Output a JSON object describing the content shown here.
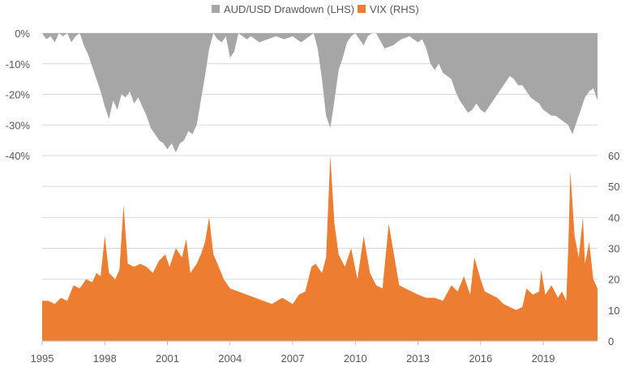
{
  "chart_data": {
    "type": "area",
    "legend": {
      "placement": "top-center",
      "items": [
        {
          "label": "AUD/USD Drawdown (LHS)",
          "color": "#a6a6a6"
        },
        {
          "label": "VIX (RHS)",
          "color": "#ed7d31"
        }
      ]
    },
    "left_axis": {
      "ticks": [
        "0%",
        "-10%",
        "-20%",
        "-30%",
        "-40%"
      ],
      "values": [
        0,
        -10,
        -20,
        -30,
        -40
      ],
      "range": [
        -40,
        0
      ]
    },
    "right_axis": {
      "ticks": [
        "0",
        "10",
        "20",
        "30",
        "40",
        "50",
        "60"
      ],
      "values": [
        0,
        10,
        20,
        30,
        40,
        50,
        60
      ],
      "range": [
        0,
        60
      ]
    },
    "x_axis": {
      "ticks": [
        "1995",
        "1998",
        "2001",
        "2004",
        "2007",
        "2010",
        "2013",
        "2016",
        "2019"
      ],
      "values": [
        1995,
        1998,
        2001,
        2004,
        2007,
        2010,
        2013,
        2016,
        2019
      ],
      "range": [
        1995,
        2021.6
      ]
    },
    "grid": true,
    "series": [
      {
        "name": "AUD/USD Drawdown (LHS)",
        "axis": "left",
        "color": "#a6a6a6",
        "x": [
          1995.0,
          1995.2,
          1995.4,
          1995.6,
          1995.8,
          1996.0,
          1996.2,
          1996.4,
          1996.6,
          1996.8,
          1997.0,
          1997.2,
          1997.4,
          1997.6,
          1997.8,
          1998.0,
          1998.2,
          1998.4,
          1998.6,
          1998.8,
          1999.0,
          1999.2,
          1999.4,
          1999.6,
          1999.8,
          2000.0,
          2000.2,
          2000.4,
          2000.6,
          2000.8,
          2001.0,
          2001.2,
          2001.4,
          2001.6,
          2001.8,
          2002.0,
          2002.2,
          2002.4,
          2002.6,
          2002.8,
          2003.0,
          2003.2,
          2003.4,
          2003.6,
          2003.8,
          2004.0,
          2004.2,
          2004.4,
          2004.6,
          2004.8,
          2005.0,
          2005.4,
          2005.8,
          2006.2,
          2006.6,
          2007.0,
          2007.4,
          2007.8,
          2008.0,
          2008.2,
          2008.4,
          2008.6,
          2008.8,
          2009.0,
          2009.2,
          2009.4,
          2009.6,
          2009.8,
          2010.0,
          2010.2,
          2010.4,
          2010.6,
          2010.8,
          2011.0,
          2011.4,
          2011.8,
          2012.2,
          2012.6,
          2013.0,
          2013.2,
          2013.4,
          2013.6,
          2013.8,
          2014.0,
          2014.2,
          2014.4,
          2014.6,
          2014.8,
          2015.0,
          2015.2,
          2015.4,
          2015.6,
          2015.8,
          2016.0,
          2016.2,
          2016.4,
          2016.6,
          2016.8,
          2017.0,
          2017.2,
          2017.4,
          2017.6,
          2017.8,
          2018.0,
          2018.2,
          2018.4,
          2018.6,
          2018.8,
          2019.0,
          2019.2,
          2019.4,
          2019.6,
          2019.8,
          2020.0,
          2020.2,
          2020.4,
          2020.6,
          2020.8,
          2021.0,
          2021.2,
          2021.4,
          2021.6
        ],
        "values": [
          0,
          -2,
          -1,
          -3,
          0,
          -1,
          0,
          -3,
          -1,
          0,
          -4,
          -7,
          -11,
          -15,
          -19,
          -24,
          -28,
          -22,
          -25,
          -20,
          -21,
          -19,
          -23,
          -21,
          -24,
          -27,
          -31,
          -33,
          -35,
          -36,
          -38,
          -36,
          -39,
          -36,
          -35,
          -32,
          -33,
          -30,
          -22,
          -14,
          -5,
          0,
          -2,
          -3,
          -1,
          -8,
          -6,
          0,
          -1,
          -2,
          -1,
          -3,
          -2,
          -1,
          -2,
          -1,
          -3,
          -1,
          0,
          -5,
          -15,
          -27,
          -31,
          -22,
          -12,
          -8,
          -3,
          -1,
          0,
          -2,
          -4,
          -1,
          0,
          0,
          -5,
          -4,
          -2,
          -1,
          -3,
          -2,
          -5,
          -10,
          -12,
          -10,
          -13,
          -14,
          -15,
          -19,
          -22,
          -24,
          -26,
          -25,
          -23,
          -25,
          -26,
          -24,
          -22,
          -20,
          -18,
          -16,
          -14,
          -15,
          -17,
          -17,
          -19,
          -21,
          -22,
          -23,
          -25,
          -26,
          -27,
          -27,
          -28,
          -29,
          -30,
          -33,
          -29,
          -25,
          -21,
          -19,
          -18,
          -22
        ]
      },
      {
        "name": "VIX (RHS)",
        "axis": "right",
        "color": "#ed7d31",
        "x": [
          1995.0,
          1995.3,
          1995.6,
          1995.9,
          1996.2,
          1996.5,
          1996.8,
          1997.1,
          1997.4,
          1997.6,
          1997.8,
          1998.0,
          1998.2,
          1998.5,
          1998.7,
          1998.9,
          1999.1,
          1999.4,
          1999.7,
          2000.0,
          2000.3,
          2000.6,
          2000.9,
          2001.1,
          2001.4,
          2001.7,
          2001.9,
          2002.1,
          2002.4,
          2002.6,
          2002.8,
          2003.0,
          2003.2,
          2003.4,
          2003.7,
          2004.0,
          2004.4,
          2004.8,
          2005.2,
          2005.6,
          2006.0,
          2006.5,
          2007.0,
          2007.3,
          2007.6,
          2007.9,
          2008.1,
          2008.4,
          2008.6,
          2008.8,
          2009.0,
          2009.2,
          2009.5,
          2009.8,
          2010.1,
          2010.4,
          2010.7,
          2011.0,
          2011.3,
          2011.6,
          2011.8,
          2012.1,
          2012.4,
          2012.7,
          2013.0,
          2013.4,
          2013.8,
          2014.2,
          2014.6,
          2014.9,
          2015.2,
          2015.5,
          2015.7,
          2016.0,
          2016.2,
          2016.5,
          2016.8,
          2017.1,
          2017.4,
          2017.7,
          2018.0,
          2018.2,
          2018.5,
          2018.8,
          2018.9,
          2019.1,
          2019.4,
          2019.7,
          2019.9,
          2020.1,
          2020.2,
          2020.3,
          2020.5,
          2020.7,
          2020.9,
          2021.0,
          2021.2,
          2021.4,
          2021.6
        ],
        "values": [
          13,
          13,
          12,
          14,
          13,
          18,
          17,
          20,
          19,
          22,
          21,
          34,
          22,
          20,
          23,
          44,
          25,
          24,
          25,
          24,
          22,
          26,
          28,
          24,
          30,
          27,
          33,
          22,
          25,
          28,
          32,
          40,
          28,
          25,
          20,
          17,
          16,
          15,
          14,
          13,
          12,
          14,
          12,
          15,
          16,
          24,
          25,
          22,
          27,
          60,
          38,
          28,
          24,
          30,
          20,
          34,
          22,
          18,
          17,
          38,
          30,
          18,
          17,
          16,
          15,
          14,
          14,
          13,
          18,
          16,
          21,
          15,
          27,
          20,
          16,
          15,
          14,
          12,
          11,
          10,
          11,
          17,
          15,
          16,
          23,
          15,
          18,
          14,
          16,
          13,
          30,
          55,
          34,
          27,
          40,
          25,
          32,
          20,
          17
        ]
      }
    ]
  }
}
